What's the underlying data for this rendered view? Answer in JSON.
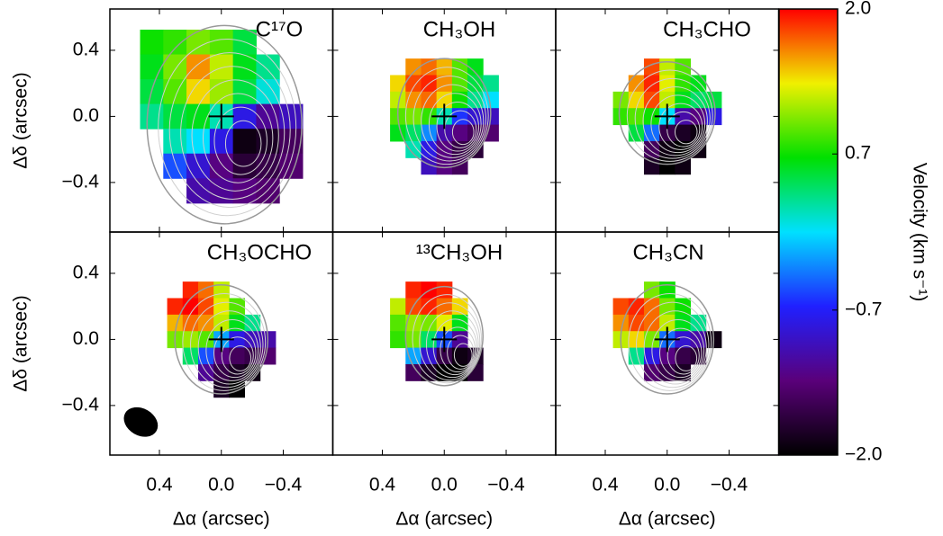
{
  "chart_data": [
    {
      "type": "heatmap",
      "title": "C¹⁷O",
      "ylabel": "Δδ (arcsec)",
      "xlim": [
        0.72,
        -0.72
      ],
      "ylim": [
        -0.7,
        0.65
      ],
      "xticks": [
        0.4,
        {
          "value": 0,
          "label": "0.0"
        },
        {
          "value": -0.4,
          "label": "−0.4"
        }
      ],
      "yticks": [
        0.4,
        {
          "value": 0,
          "label": "0.0"
        },
        {
          "value": -0.4,
          "label": "−0.4"
        }
      ],
      "x": [
        0.45,
        0.3,
        0.15,
        0,
        -0.15,
        -0.3,
        -0.45
      ],
      "y": [
        0.45,
        0.3,
        0.15,
        0,
        -0.15,
        -0.3,
        -0.45
      ],
      "values": [
        [
          0.7,
          0.8,
          1.0,
          0.9,
          0.5,
          null,
          null
        ],
        [
          0.6,
          1.0,
          1.6,
          1.2,
          0.6,
          0.3,
          null
        ],
        [
          0.5,
          0.9,
          1.4,
          1.1,
          0.5,
          0.1,
          null
        ],
        [
          0.3,
          0.5,
          0.6,
          0.2,
          -0.8,
          -1.2,
          -1.0
        ],
        [
          null,
          0.2,
          0.0,
          -0.8,
          -1.9,
          -1.8,
          -1.5
        ],
        [
          null,
          -0.5,
          -0.9,
          -1.3,
          -1.7,
          -1.6,
          -1.4
        ],
        [
          null,
          null,
          -1.1,
          -1.2,
          -1.3,
          -1.4,
          null
        ]
      ]
    },
    {
      "type": "heatmap",
      "title": "CH₃OH",
      "xlim": [
        0.72,
        -0.72
      ],
      "ylim": [
        -0.7,
        0.65
      ],
      "xticks": [
        0.4,
        {
          "value": 0,
          "label": "0.0"
        },
        {
          "value": -0.4,
          "label": "−0.4"
        }
      ],
      "yticks": [
        0.4,
        {
          "value": 0,
          "label": "0.0"
        },
        {
          "value": -0.4,
          "label": "−0.4"
        }
      ],
      "x": [
        0.3,
        0.2,
        0.1,
        0,
        -0.1,
        -0.2,
        -0.3
      ],
      "y": [
        0.3,
        0.2,
        0.1,
        0,
        -0.1,
        -0.2,
        -0.3
      ],
      "values": [
        [
          null,
          1.6,
          1.7,
          1.5,
          0.9,
          0.6,
          null
        ],
        [
          1.4,
          1.8,
          1.9,
          1.6,
          0.9,
          0.5,
          0.3
        ],
        [
          1.2,
          1.6,
          1.7,
          1.4,
          0.7,
          0.3,
          0.0
        ],
        [
          0.9,
          1.0,
          0.8,
          0.2,
          -0.6,
          -0.9,
          -1.0
        ],
        [
          0.6,
          0.4,
          -0.3,
          -1.1,
          -1.3,
          -1.5,
          -1.4
        ],
        [
          null,
          0.2,
          -0.8,
          -1.3,
          -1.6,
          -1.7,
          null
        ],
        [
          null,
          null,
          -1.0,
          -1.3,
          -1.5,
          null,
          null
        ]
      ]
    },
    {
      "type": "heatmap",
      "title": "CH₃CHO",
      "xlim": [
        0.72,
        -0.72
      ],
      "ylim": [
        -0.7,
        0.65
      ],
      "xticks": [
        0.4,
        {
          "value": 0,
          "label": "0.0"
        },
        {
          "value": -0.4,
          "label": "−0.4"
        }
      ],
      "yticks": [
        0.4,
        {
          "value": 0,
          "label": "0.0"
        },
        {
          "value": -0.4,
          "label": "−0.4"
        }
      ],
      "x": [
        0.3,
        0.2,
        0.1,
        0,
        -0.1,
        -0.2,
        -0.3
      ],
      "y": [
        0.3,
        0.2,
        0.1,
        0,
        -0.1,
        -0.2,
        -0.3
      ],
      "values": [
        [
          null,
          null,
          1.8,
          1.2,
          0.9,
          null,
          null
        ],
        [
          null,
          1.6,
          1.9,
          1.3,
          0.8,
          0.6,
          null
        ],
        [
          1.0,
          1.4,
          1.8,
          1.2,
          0.6,
          0.4,
          0.5
        ],
        [
          0.8,
          0.9,
          0.7,
          0.0,
          -1.1,
          -1.3,
          -0.8
        ],
        [
          null,
          0.5,
          -0.4,
          -1.6,
          -1.8,
          -1.9,
          null
        ],
        [
          null,
          null,
          -1.5,
          -1.9,
          -2.0,
          -1.9,
          null
        ],
        [
          null,
          null,
          -1.8,
          -2.0,
          -1.9,
          null,
          null
        ]
      ]
    },
    {
      "type": "heatmap",
      "title": "CH₃OCHO",
      "xlabel": "Δα (arcsec)",
      "ylabel": "Δδ (arcsec)",
      "xlim": [
        0.72,
        -0.72
      ],
      "ylim": [
        -0.7,
        0.65
      ],
      "xticks": [
        0.4,
        {
          "value": 0,
          "label": "0.0"
        },
        {
          "value": -0.4,
          "label": "−0.4"
        }
      ],
      "yticks": [
        0.4,
        {
          "value": 0,
          "label": "0.0"
        },
        {
          "value": -0.4,
          "label": "−0.4"
        }
      ],
      "x": [
        0.3,
        0.2,
        0.1,
        0,
        -0.1,
        -0.2,
        -0.3
      ],
      "y": [
        0.3,
        0.2,
        0.1,
        0,
        -0.1,
        -0.2,
        -0.3
      ],
      "values": [
        [
          null,
          1.9,
          1.7,
          1.2,
          null,
          null,
          null
        ],
        [
          1.9,
          2.0,
          1.8,
          1.3,
          0.9,
          null,
          null
        ],
        [
          1.5,
          1.7,
          1.6,
          1.2,
          0.6,
          0.3,
          null
        ],
        [
          1.0,
          1.1,
          0.9,
          -0.2,
          -0.8,
          -1.0,
          -1.1
        ],
        [
          null,
          0.4,
          -0.5,
          -1.3,
          -1.5,
          -1.6,
          -1.4
        ],
        [
          null,
          null,
          -1.2,
          -1.6,
          -1.8,
          -1.9,
          null
        ],
        [
          null,
          null,
          null,
          -1.8,
          -2.0,
          null,
          null
        ]
      ]
    },
    {
      "type": "heatmap",
      "title": "¹³CH₃OH",
      "xlabel": "Δα (arcsec)",
      "xlim": [
        0.72,
        -0.72
      ],
      "ylim": [
        -0.7,
        0.65
      ],
      "xticks": [
        0.4,
        {
          "value": 0,
          "label": "0.0"
        },
        {
          "value": -0.4,
          "label": "−0.4"
        }
      ],
      "yticks": [
        0.4,
        {
          "value": 0,
          "label": "0.0"
        },
        {
          "value": -0.4,
          "label": "−0.4"
        }
      ],
      "x": [
        0.3,
        0.2,
        0.1,
        0,
        -0.1,
        -0.2,
        -0.3
      ],
      "y": [
        0.3,
        0.2,
        0.1,
        0,
        -0.1,
        -0.2,
        -0.3
      ],
      "values": [
        [
          null,
          1.9,
          2.0,
          1.9,
          null,
          null,
          null
        ],
        [
          1.2,
          1.8,
          1.9,
          1.7,
          1.4,
          null,
          null
        ],
        [
          0.9,
          1.1,
          1.0,
          1.3,
          0.6,
          null,
          null
        ],
        [
          0.8,
          1.0,
          0.4,
          -0.5,
          -1.2,
          null,
          null
        ],
        [
          null,
          -0.2,
          -0.9,
          -1.6,
          -1.9,
          -1.8,
          null
        ],
        [
          null,
          -1.5,
          -1.8,
          -2.0,
          -2.0,
          -1.7,
          null
        ],
        [
          null,
          null,
          null,
          null,
          null,
          null,
          null
        ]
      ]
    },
    {
      "type": "heatmap",
      "title": "CH₃CN",
      "xlabel": "Δα (arcsec)",
      "xlim": [
        0.72,
        -0.72
      ],
      "ylim": [
        -0.7,
        0.65
      ],
      "xticks": [
        0.4,
        {
          "value": 0,
          "label": "0.0"
        },
        {
          "value": -0.4,
          "label": "−0.4"
        }
      ],
      "yticks": [
        0.4,
        {
          "value": 0,
          "label": "0.0"
        },
        {
          "value": -0.4,
          "label": "−0.4"
        }
      ],
      "x": [
        0.3,
        0.2,
        0.1,
        0,
        -0.1,
        -0.2,
        -0.3
      ],
      "y": [
        0.3,
        0.2,
        0.1,
        0,
        -0.1,
        -0.2,
        -0.3
      ],
      "values": [
        [
          null,
          null,
          1.0,
          0.7,
          null,
          null,
          null
        ],
        [
          1.8,
          1.9,
          1.7,
          1.0,
          0.7,
          null,
          null
        ],
        [
          1.6,
          1.8,
          1.7,
          1.2,
          0.6,
          0.3,
          null
        ],
        [
          1.2,
          1.4,
          1.0,
          -0.4,
          -0.9,
          -1.1,
          -1.9
        ],
        [
          null,
          0.3,
          -0.8,
          -1.3,
          -1.6,
          -1.7,
          null
        ],
        [
          null,
          null,
          -1.4,
          -1.6,
          -1.8,
          null,
          null
        ],
        [
          null,
          null,
          null,
          null,
          null,
          null,
          null
        ]
      ]
    }
  ],
  "colorbar": {
    "label": "Velocity (km s⁻¹)",
    "lim": [
      -2,
      2
    ],
    "ticks": [
      {
        "value": 2,
        "label": "2.0"
      },
      0.7,
      {
        "value": -0.7,
        "label": "−0.7"
      },
      {
        "value": -2,
        "label": "−2.0"
      }
    ],
    "colors": [
      "#000000",
      "#5a007a",
      "#2020ff",
      "#00e0ff",
      "#00e000",
      "#f0f000",
      "#ff0000"
    ]
  }
}
